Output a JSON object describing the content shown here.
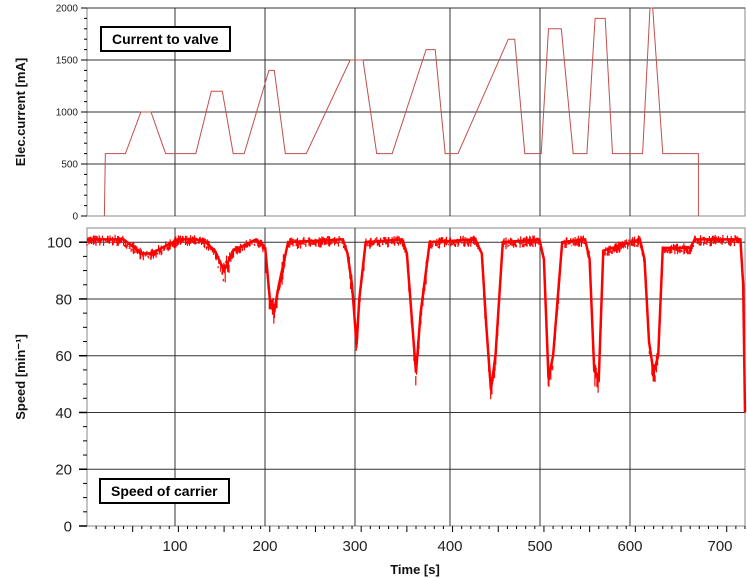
{
  "colors": {
    "current_line": "#c0504d",
    "speed_line": "#ff0000",
    "grid": "#333333",
    "frame": "#888888"
  },
  "chart_data": [
    {
      "type": "line",
      "title": "Current to valve",
      "xlabel": "",
      "ylabel": "Elec.current  [mA]",
      "xlim": [
        0,
        720
      ],
      "ylim": [
        0,
        2000
      ],
      "yticks": [
        0,
        500,
        1000,
        1500,
        2000
      ],
      "ytick_labels": [
        "0",
        "500",
        "1000",
        "1500",
        "2000"
      ],
      "grid": true,
      "series": [
        {
          "x": [
            19,
            19,
            20,
            20,
            42,
            59,
            70,
            86,
            119,
            136,
            148,
            160,
            172,
            199,
            205,
            217,
            240,
            288,
            302,
            317,
            334,
            371,
            381,
            392,
            406,
            461,
            468,
            479,
            497,
            505,
            519,
            532,
            547,
            556,
            567,
            575,
            608,
            616,
            619,
            630,
            656,
            669,
            669
          ],
          "y": [
            0,
            0,
            590,
            600,
            600,
            1000,
            1000,
            600,
            600,
            1200,
            1200,
            600,
            600,
            1400,
            1400,
            600,
            600,
            1500,
            1500,
            600,
            600,
            1600,
            1600,
            600,
            600,
            1700,
            1700,
            600,
            600,
            1800,
            1800,
            600,
            600,
            1900,
            1900,
            600,
            600,
            2000,
            2000,
            600,
            600,
            600,
            0
          ]
        }
      ]
    },
    {
      "type": "line",
      "title": "Speed of carrier",
      "xlabel": "Time [s]",
      "ylabel": "Speed [min⁻¹]",
      "xlim": [
        0,
        720
      ],
      "ylim": [
        0,
        105
      ],
      "xticks": [
        100,
        200,
        300,
        400,
        500,
        600,
        700
      ],
      "xtick_labels": [
        "100",
        "200",
        "300",
        "400",
        "500",
        "600",
        "700"
      ],
      "yticks": [
        0,
        20,
        40,
        60,
        80,
        100
      ],
      "ytick_labels": [
        "0",
        "20",
        "40",
        "60",
        "80",
        "100"
      ],
      "grid": true,
      "series": [
        {
          "x": [
            0,
            40,
            60,
            70,
            100,
            120,
            130,
            140,
            150,
            160,
            185,
            195,
            200,
            205,
            210,
            220,
            280,
            285,
            290,
            295,
            298,
            305,
            345,
            350,
            355,
            360,
            365,
            375,
            425,
            432,
            437,
            442,
            447,
            455,
            495,
            500,
            505,
            510,
            520,
            545,
            550,
            555,
            560,
            565,
            605,
            610,
            615,
            620,
            625,
            630,
            660,
            665,
            715,
            718,
            720
          ],
          "y": [
            101,
            101,
            96,
            96,
            101,
            101,
            100,
            97,
            90,
            97,
            101,
            98,
            80,
            76,
            85,
            100,
            101,
            96,
            85,
            64,
            80,
            100,
            101,
            96,
            75,
            54,
            75,
            100,
            101,
            96,
            70,
            48,
            60,
            100,
            101,
            94,
            52,
            60,
            100,
            101,
            94,
            55,
            52,
            97,
            101,
            94,
            65,
            54,
            60,
            98,
            98,
            101,
            101,
            85,
            40
          ]
        }
      ]
    }
  ]
}
